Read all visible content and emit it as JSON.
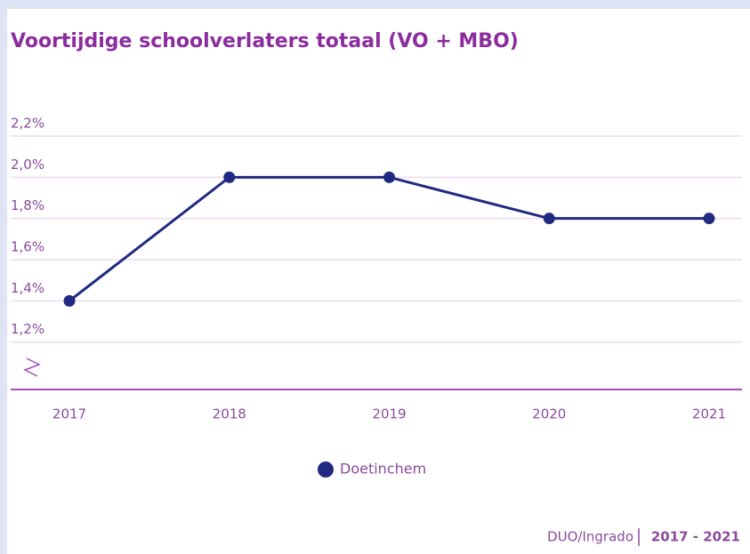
{
  "chart_data": {
    "type": "line",
    "title": "Voortijdige schoolverlaters totaal (VO + MBO)",
    "categories": [
      "2017",
      "2018",
      "2019",
      "2020",
      "2021"
    ],
    "series": [
      {
        "name": "Doetinchem",
        "color": "#1f2a80",
        "values": [
          1.4,
          2.0,
          2.0,
          1.8,
          1.8
        ]
      }
    ],
    "ylim": [
      0.97,
      2.2
    ],
    "yticks": [
      {
        "value": 1.2,
        "label": "1,2%"
      },
      {
        "value": 1.4,
        "label": "1,4%"
      },
      {
        "value": 1.6,
        "label": "1,6%"
      },
      {
        "value": 1.8,
        "label": "1,8%"
      },
      {
        "value": 2.0,
        "label": "2,0%"
      },
      {
        "value": 2.2,
        "label": "2,2%"
      }
    ],
    "grid": true,
    "legend": "bottom",
    "source": "DUO/Ingrado",
    "period": "2017 - 2021"
  }
}
